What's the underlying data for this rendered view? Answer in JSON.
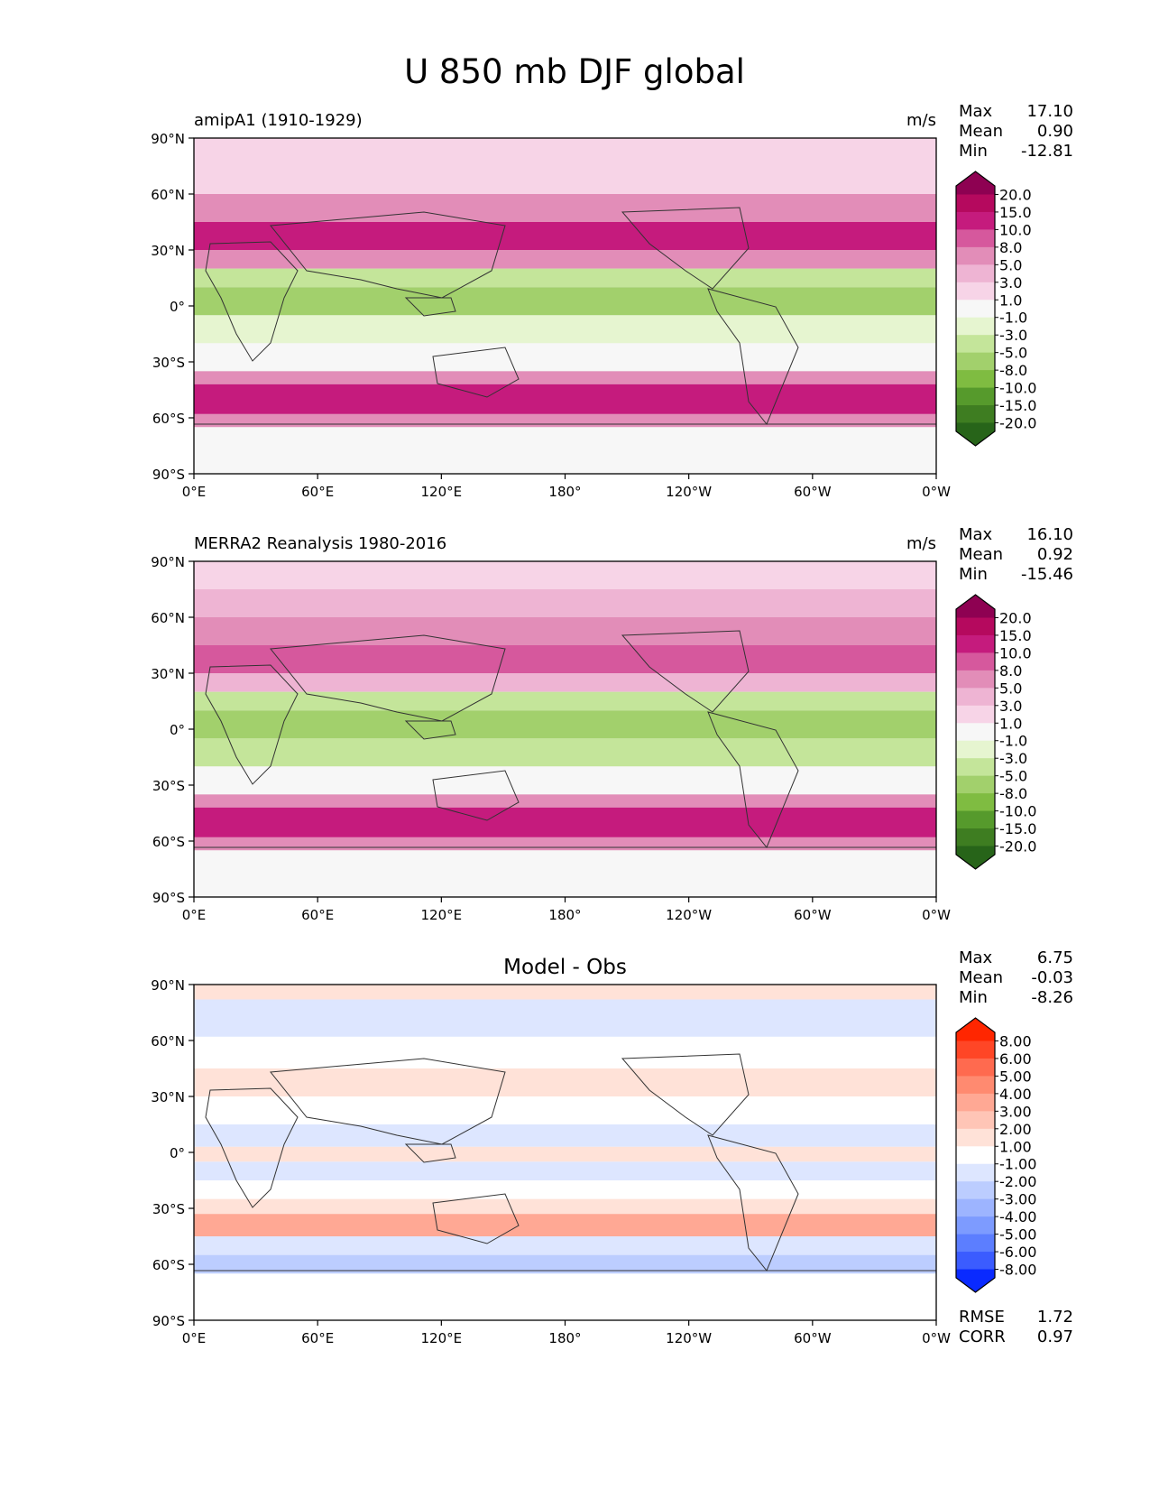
{
  "figure_title": "U 850 mb DJF global",
  "chart_data": [
    {
      "type": "heatmap",
      "title_left": "amipA1 (1910-1929)",
      "units": "m/s",
      "stats": {
        "Max": "17.10",
        "Mean": "0.90",
        "Min": "-12.81"
      },
      "stat_labels": [
        "Max",
        "Mean",
        "Min"
      ],
      "x_ticks": [
        "0°E",
        "60°E",
        "120°E",
        "180°",
        "120°W",
        "60°W",
        "0°W"
      ],
      "y_ticks": [
        "90°N",
        "60°N",
        "30°N",
        "0°",
        "30°S",
        "60°S",
        "90°S"
      ],
      "xlim": [
        0,
        360
      ],
      "ylim": [
        -90,
        90
      ],
      "colorbar": {
        "levels": [
          "20.0",
          "15.0",
          "10.0",
          "8.0",
          "5.0",
          "3.0",
          "1.0",
          "-1.0",
          "-3.0",
          "-5.0",
          "-8.0",
          "-10.0",
          "-15.0",
          "-20.0"
        ],
        "colors": [
          "#8e0152",
          "#b5095e",
          "#c51b7d",
          "#d6589d",
          "#e28db8",
          "#eeb4d3",
          "#f7d4e7",
          "#f7f7f7",
          "#e6f5d0",
          "#c4e59a",
          "#a2d06c",
          "#7fbc41",
          "#569a2c",
          "#3e7d21",
          "#276419"
        ]
      },
      "bands": [
        {
          "lat_min": 75,
          "lat_max": 90,
          "value": 1.5
        },
        {
          "lat_min": 60,
          "lat_max": 75,
          "value": 2.5
        },
        {
          "lat_min": 45,
          "lat_max": 60,
          "value": 6
        },
        {
          "lat_min": 30,
          "lat_max": 45,
          "value": 10
        },
        {
          "lat_min": 20,
          "lat_max": 30,
          "value": 5
        },
        {
          "lat_min": 10,
          "lat_max": 20,
          "value": -4
        },
        {
          "lat_min": -5,
          "lat_max": 10,
          "value": -6
        },
        {
          "lat_min": -20,
          "lat_max": -5,
          "value": -3
        },
        {
          "lat_min": -35,
          "lat_max": -20,
          "value": 0
        },
        {
          "lat_min": -42,
          "lat_max": -35,
          "value": 6
        },
        {
          "lat_min": -58,
          "lat_max": -42,
          "value": 14
        },
        {
          "lat_min": -65,
          "lat_max": -58,
          "value": 6
        },
        {
          "lat_min": -90,
          "lat_max": -65,
          "value": 0
        }
      ]
    },
    {
      "type": "heatmap",
      "title_left": "MERRA2 Reanalysis 1980-2016",
      "units": "m/s",
      "stats": {
        "Max": "16.10",
        "Mean": "0.92",
        "Min": "-15.46"
      },
      "stat_labels": [
        "Max",
        "Mean",
        "Min"
      ],
      "x_ticks": [
        "0°E",
        "60°E",
        "120°E",
        "180°",
        "120°W",
        "60°W",
        "0°W"
      ],
      "y_ticks": [
        "90°N",
        "60°N",
        "30°N",
        "0°",
        "30°S",
        "60°S",
        "90°S"
      ],
      "xlim": [
        0,
        360
      ],
      "ylim": [
        -90,
        90
      ],
      "colorbar": {
        "levels": [
          "20.0",
          "15.0",
          "10.0",
          "8.0",
          "5.0",
          "3.0",
          "1.0",
          "-1.0",
          "-3.0",
          "-5.0",
          "-8.0",
          "-10.0",
          "-15.0",
          "-20.0"
        ],
        "colors": [
          "#8e0152",
          "#b5095e",
          "#c51b7d",
          "#d6589d",
          "#e28db8",
          "#eeb4d3",
          "#f7d4e7",
          "#f7f7f7",
          "#e6f5d0",
          "#c4e59a",
          "#a2d06c",
          "#7fbc41",
          "#569a2c",
          "#3e7d21",
          "#276419"
        ]
      },
      "bands": [
        {
          "lat_min": 75,
          "lat_max": 90,
          "value": 1.5
        },
        {
          "lat_min": 60,
          "lat_max": 75,
          "value": 3
        },
        {
          "lat_min": 45,
          "lat_max": 60,
          "value": 6
        },
        {
          "lat_min": 30,
          "lat_max": 45,
          "value": 9
        },
        {
          "lat_min": 20,
          "lat_max": 30,
          "value": 3
        },
        {
          "lat_min": 10,
          "lat_max": 20,
          "value": -4
        },
        {
          "lat_min": -5,
          "lat_max": 10,
          "value": -6
        },
        {
          "lat_min": -20,
          "lat_max": -5,
          "value": -4
        },
        {
          "lat_min": -35,
          "lat_max": -20,
          "value": 0
        },
        {
          "lat_min": -42,
          "lat_max": -35,
          "value": 5
        },
        {
          "lat_min": -58,
          "lat_max": -42,
          "value": 12
        },
        {
          "lat_min": -65,
          "lat_max": -58,
          "value": 5
        },
        {
          "lat_min": -90,
          "lat_max": -65,
          "value": 0
        }
      ]
    },
    {
      "type": "heatmap",
      "title_center": "Model - Obs",
      "stats": {
        "Max": "6.75",
        "Mean": "-0.03",
        "Min": "-8.26"
      },
      "stat_labels": [
        "Max",
        "Mean",
        "Min"
      ],
      "metrics": {
        "RMSE": "1.72",
        "CORR": "0.97"
      },
      "metric_labels": [
        "RMSE",
        "CORR"
      ],
      "x_ticks": [
        "0°E",
        "60°E",
        "120°E",
        "180°",
        "120°W",
        "60°W",
        "0°W"
      ],
      "y_ticks": [
        "90°N",
        "60°N",
        "30°N",
        "0°",
        "30°S",
        "60°S",
        "90°S"
      ],
      "xlim": [
        0,
        360
      ],
      "ylim": [
        -90,
        90
      ],
      "colorbar": {
        "levels": [
          "8.00",
          "6.00",
          "5.00",
          "4.00",
          "3.00",
          "2.00",
          "1.00",
          "-1.00",
          "-2.00",
          "-3.00",
          "-4.00",
          "-5.00",
          "-6.00",
          "-8.00"
        ],
        "colors": [
          "#ff2600",
          "#ff4626",
          "#ff6a4f",
          "#ff8a70",
          "#ffa894",
          "#ffc5b6",
          "#ffe2d8",
          "#ffffff",
          "#dde6ff",
          "#bccdff",
          "#9db4ff",
          "#7d9bff",
          "#5c7eff",
          "#3b5cff",
          "#0a2aff"
        ]
      },
      "bands": [
        {
          "lat_min": 82,
          "lat_max": 90,
          "value": 1.5
        },
        {
          "lat_min": 62,
          "lat_max": 82,
          "value": -1.5
        },
        {
          "lat_min": 45,
          "lat_max": 62,
          "value": -0.5
        },
        {
          "lat_min": 30,
          "lat_max": 45,
          "value": 1.5
        },
        {
          "lat_min": 15,
          "lat_max": 30,
          "value": 0
        },
        {
          "lat_min": 3,
          "lat_max": 15,
          "value": -1.5
        },
        {
          "lat_min": -5,
          "lat_max": 3,
          "value": 1.2
        },
        {
          "lat_min": -15,
          "lat_max": -5,
          "value": -1.5
        },
        {
          "lat_min": -25,
          "lat_max": -15,
          "value": 0
        },
        {
          "lat_min": -33,
          "lat_max": -25,
          "value": 1.2
        },
        {
          "lat_min": -45,
          "lat_max": -33,
          "value": 3
        },
        {
          "lat_min": -55,
          "lat_max": -45,
          "value": -1.5
        },
        {
          "lat_min": -65,
          "lat_max": -55,
          "value": -3
        },
        {
          "lat_min": -90,
          "lat_max": -65,
          "value": 0
        }
      ]
    }
  ]
}
